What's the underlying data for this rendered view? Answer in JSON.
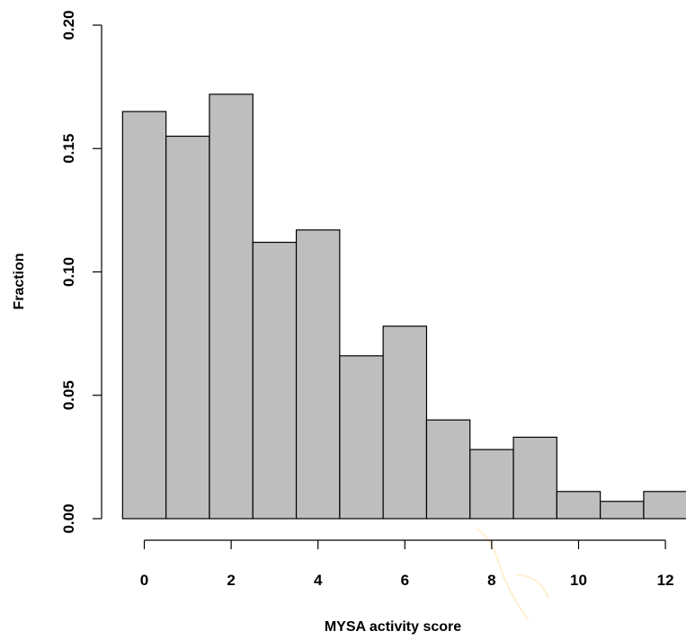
{
  "chart_data": {
    "type": "bar",
    "subtype": "histogram",
    "title": "",
    "xlabel": "MYSA activity score",
    "ylabel": "Fraction",
    "x": [
      0,
      1,
      2,
      3,
      4,
      5,
      6,
      7,
      8,
      9,
      10,
      11,
      12
    ],
    "values": [
      0.165,
      0.155,
      0.172,
      0.112,
      0.117,
      0.066,
      0.078,
      0.04,
      0.028,
      0.033,
      0.011,
      0.007,
      0.011
    ],
    "bin_width": 1,
    "xlim": [
      -0.5,
      12.5
    ],
    "ylim": [
      0,
      0.2
    ],
    "xticks": [
      0,
      2,
      4,
      6,
      8,
      10,
      12
    ],
    "xtick_labels": [
      "0",
      "2",
      "4",
      "6",
      "8",
      "10",
      "12"
    ],
    "yticks": [
      0,
      0.05,
      0.1,
      0.15,
      0.2
    ],
    "ytick_labels": [
      "0.00",
      "0.05",
      "0.10",
      "0.15",
      "0.20"
    ],
    "grid": false,
    "legend": "none",
    "bar_color": "#bebebe",
    "edge_color": "#000000"
  }
}
